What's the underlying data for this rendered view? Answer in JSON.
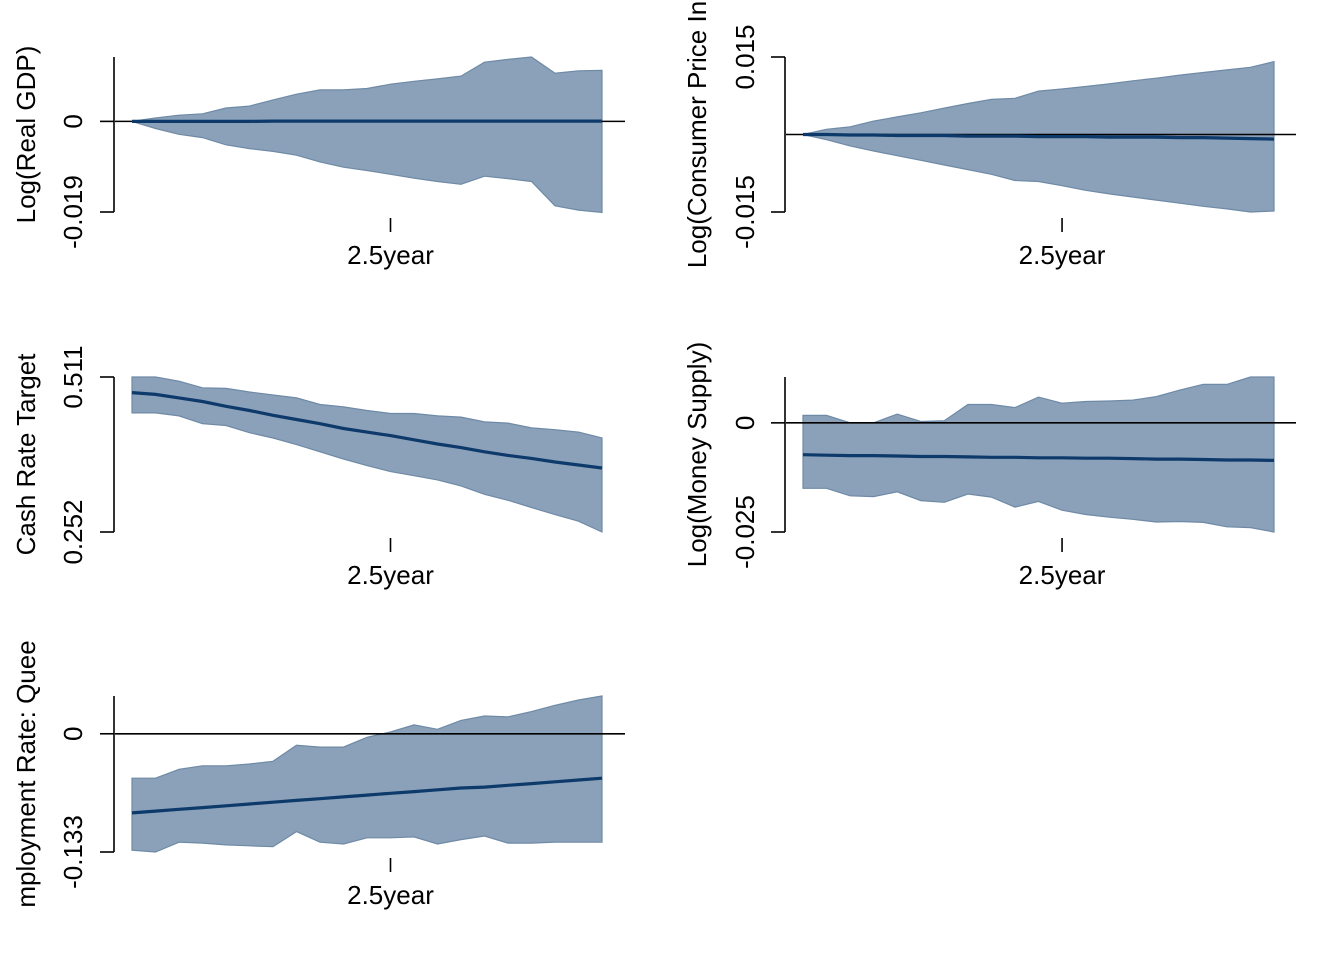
{
  "chart_data": [
    {
      "type": "area",
      "ylabel": "Log(Real GDP)",
      "x_tick_label": "2.5year",
      "x_tick_value": 12,
      "y_ticks": [
        {
          "value": -0.019,
          "label": "-0.019"
        },
        {
          "value": 0,
          "label": "0"
        }
      ],
      "ylim": [
        -0.019,
        0.0135
      ],
      "zero_line": true,
      "x": [
        1,
        2,
        3,
        4,
        5,
        6,
        7,
        8,
        9,
        10,
        11,
        12,
        13,
        14,
        15,
        16,
        17,
        18,
        19,
        20,
        21
      ],
      "median": [
        0,
        0,
        0,
        0,
        0,
        0,
        5e-05,
        5e-05,
        5e-05,
        5e-05,
        5e-05,
        5e-05,
        5e-05,
        5e-05,
        5e-05,
        5e-05,
        5e-05,
        5e-05,
        5e-05,
        5e-05,
        5e-05
      ],
      "upper": [
        0,
        0.0007,
        0.0013,
        0.0016,
        0.0028,
        0.0032,
        0.0045,
        0.0057,
        0.0066,
        0.0066,
        0.0069,
        0.0078,
        0.0084,
        0.0089,
        0.0095,
        0.0124,
        0.013,
        0.0135,
        0.0101,
        0.0106,
        0.0107
      ],
      "lower": [
        0,
        -0.0015,
        -0.0027,
        -0.0034,
        -0.0049,
        -0.0057,
        -0.0063,
        -0.0071,
        -0.0085,
        -0.0096,
        -0.0103,
        -0.0111,
        -0.0119,
        -0.0126,
        -0.0132,
        -0.0115,
        -0.012,
        -0.0126,
        -0.0177,
        -0.0186,
        -0.0191
      ]
    },
    {
      "type": "area",
      "ylabel": "Log(Consumer Price In",
      "x_tick_label": "2.5year",
      "x_tick_value": 12,
      "y_ticks": [
        {
          "value": -0.015,
          "label": "-0.015"
        },
        {
          "value": 0.015,
          "label": "0.015"
        }
      ],
      "ylim": [
        -0.015,
        0.015
      ],
      "zero_line": true,
      "x": [
        1,
        2,
        3,
        4,
        5,
        6,
        7,
        8,
        9,
        10,
        11,
        12,
        13,
        14,
        15,
        16,
        17,
        18,
        19,
        20,
        21
      ],
      "median": [
        0,
        0,
        -0.0001,
        -0.0001,
        -0.0002,
        -0.0002,
        -0.0002,
        -0.0003,
        -0.0003,
        -0.0003,
        -0.0004,
        -0.0004,
        -0.0004,
        -0.0005,
        -0.0005,
        -0.0005,
        -0.0006,
        -0.0006,
        -0.0007,
        -0.0008,
        -0.0009
      ],
      "upper": [
        0,
        0.001,
        0.0015,
        0.0026,
        0.0034,
        0.0042,
        0.0051,
        0.006,
        0.0068,
        0.007,
        0.0084,
        0.0088,
        0.0093,
        0.0098,
        0.0104,
        0.0109,
        0.0115,
        0.012,
        0.0125,
        0.013,
        0.0141
      ],
      "lower": [
        0,
        -0.001,
        -0.0022,
        -0.0032,
        -0.0041,
        -0.005,
        -0.0059,
        -0.0068,
        -0.0077,
        -0.0089,
        -0.0091,
        -0.0099,
        -0.0108,
        -0.0115,
        -0.0121,
        -0.0127,
        -0.0133,
        -0.0139,
        -0.0144,
        -0.015,
        -0.0148
      ]
    },
    {
      "type": "area",
      "ylabel": "Cash Rate Target",
      "x_tick_label": "2.5year",
      "x_tick_value": 12,
      "y_ticks": [
        {
          "value": 0.252,
          "label": "0.252"
        },
        {
          "value": 0.511,
          "label": "0.511"
        }
      ],
      "ylim": [
        0.252,
        0.511
      ],
      "zero_line": false,
      "x": [
        1,
        2,
        3,
        4,
        5,
        6,
        7,
        8,
        9,
        10,
        11,
        12,
        13,
        14,
        15,
        16,
        17,
        18,
        19,
        20,
        21
      ],
      "median": [
        0.485,
        0.482,
        0.476,
        0.47,
        0.462,
        0.455,
        0.447,
        0.44,
        0.433,
        0.425,
        0.419,
        0.413,
        0.406,
        0.399,
        0.393,
        0.386,
        0.38,
        0.375,
        0.369,
        0.364,
        0.359
      ],
      "upper": [
        0.511,
        0.511,
        0.504,
        0.493,
        0.492,
        0.486,
        0.481,
        0.476,
        0.465,
        0.461,
        0.455,
        0.45,
        0.45,
        0.446,
        0.444,
        0.436,
        0.434,
        0.426,
        0.423,
        0.419,
        0.409
      ],
      "lower": [
        0.451,
        0.451,
        0.446,
        0.433,
        0.43,
        0.418,
        0.409,
        0.398,
        0.386,
        0.374,
        0.363,
        0.353,
        0.346,
        0.339,
        0.329,
        0.315,
        0.305,
        0.293,
        0.281,
        0.27,
        0.252
      ]
    },
    {
      "type": "area",
      "ylabel": "Log(Money Supply)",
      "x_tick_label": "2.5year",
      "x_tick_value": 12,
      "y_ticks": [
        {
          "value": -0.025,
          "label": "-0.025"
        },
        {
          "value": 0,
          "label": "0"
        }
      ],
      "ylim": [
        -0.025,
        0.0105
      ],
      "zero_line": true,
      "x": [
        1,
        2,
        3,
        4,
        5,
        6,
        7,
        8,
        9,
        10,
        11,
        12,
        13,
        14,
        15,
        16,
        17,
        18,
        19,
        20,
        21
      ],
      "median": [
        -0.0073,
        -0.0074,
        -0.0075,
        -0.0075,
        -0.0076,
        -0.0077,
        -0.0077,
        -0.0078,
        -0.0079,
        -0.0079,
        -0.008,
        -0.008,
        -0.0081,
        -0.0081,
        -0.0082,
        -0.0083,
        -0.0083,
        -0.0084,
        -0.0085,
        -0.0085,
        -0.0086
      ],
      "upper": [
        0.0017,
        0.0017,
        0,
        0,
        0.002,
        0.0003,
        0.0005,
        0.0042,
        0.0042,
        0.0035,
        0.0059,
        0.0045,
        0.0049,
        0.005,
        0.0052,
        0.006,
        0.0075,
        0.0088,
        0.0088,
        0.0105,
        0.0105
      ],
      "lower": [
        -0.015,
        -0.015,
        -0.0167,
        -0.0169,
        -0.0158,
        -0.0178,
        -0.0182,
        -0.0163,
        -0.017,
        -0.0193,
        -0.018,
        -0.02,
        -0.021,
        -0.0216,
        -0.0221,
        -0.0227,
        -0.0226,
        -0.0228,
        -0.0238,
        -0.024,
        -0.025
      ]
    },
    {
      "type": "area",
      "ylabel": "mployment Rate: Quee",
      "x_tick_label": "2.5year",
      "x_tick_value": 12,
      "y_ticks": [
        {
          "value": -0.133,
          "label": "-0.133"
        },
        {
          "value": 0,
          "label": "0"
        }
      ],
      "ylim": [
        -0.133,
        0.0425
      ],
      "zero_line": true,
      "x": [
        1,
        2,
        3,
        4,
        5,
        6,
        7,
        8,
        9,
        10,
        11,
        12,
        13,
        14,
        15,
        16,
        17,
        18,
        19,
        20,
        21
      ],
      "median": [
        -0.089,
        -0.087,
        -0.085,
        -0.083,
        -0.081,
        -0.079,
        -0.077,
        -0.075,
        -0.073,
        -0.071,
        -0.069,
        -0.067,
        -0.065,
        -0.063,
        -0.061,
        -0.06,
        -0.058,
        -0.056,
        -0.054,
        -0.052,
        -0.05
      ],
      "upper": [
        -0.05,
        -0.05,
        -0.04,
        -0.036,
        -0.036,
        -0.034,
        -0.031,
        -0.013,
        -0.015,
        -0.015,
        -0.004,
        0.002,
        0.01,
        0.005,
        0.015,
        0.02,
        0.019,
        0.025,
        0.032,
        0.038,
        0.0425
      ],
      "lower": [
        -0.131,
        -0.133,
        -0.122,
        -0.123,
        -0.125,
        -0.126,
        -0.127,
        -0.11,
        -0.122,
        -0.124,
        -0.117,
        -0.117,
        -0.116,
        -0.124,
        -0.119,
        -0.115,
        -0.123,
        -0.123,
        -0.122,
        -0.122,
        -0.122
      ]
    }
  ]
}
